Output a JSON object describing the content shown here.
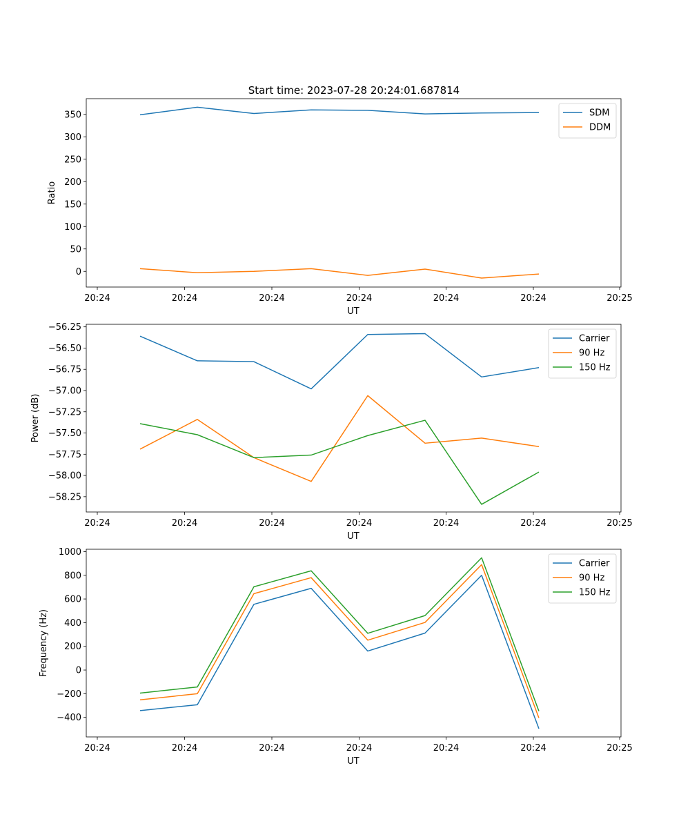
{
  "figure": {
    "title": "Start time: 2023-07-28 20:24:01.687814"
  },
  "colors": {
    "blue": "#1f77b4",
    "orange": "#ff7f0e",
    "green": "#2ca02c"
  },
  "chart_data": [
    {
      "type": "line",
      "ylabel": "Ratio",
      "xlabel": "UT",
      "x_tick_labels": [
        "20:24",
        "20:24",
        "20:24",
        "20:24",
        "20:24",
        "20:24",
        "20:25"
      ],
      "ylim": [
        -35,
        385
      ],
      "yticks": [
        0,
        50,
        100,
        150,
        200,
        250,
        300,
        350
      ],
      "ytick_labels": [
        "0",
        "50",
        "100",
        "150",
        "200",
        "250",
        "300",
        "350"
      ],
      "legend": "top-right",
      "series": [
        {
          "name": "SDM",
          "color": "#1f77b4",
          "values": [
            349,
            366,
            352,
            360,
            359,
            351,
            353,
            354
          ]
        },
        {
          "name": "DDM",
          "color": "#ff7f0e",
          "values": [
            6,
            -3,
            0,
            6,
            -9,
            5,
            -15,
            -6
          ]
        }
      ]
    },
    {
      "type": "line",
      "ylabel": "Power (dB)",
      "xlabel": "UT",
      "x_tick_labels": [
        "20:24",
        "20:24",
        "20:24",
        "20:24",
        "20:24",
        "20:24",
        "20:25"
      ],
      "ylim": [
        -58.43,
        -56.22
      ],
      "yticks": [
        -58.25,
        -58.0,
        -57.75,
        -57.5,
        -57.25,
        -57.0,
        -56.75,
        -56.5,
        -56.25
      ],
      "ytick_labels": [
        "−58.25",
        "−58.00",
        "−57.75",
        "−57.50",
        "−57.25",
        "−57.00",
        "−56.75",
        "−56.50",
        "−56.25"
      ],
      "legend": "top-right",
      "series": [
        {
          "name": "Carrier",
          "color": "#1f77b4",
          "values": [
            -56.36,
            -56.65,
            -56.66,
            -56.98,
            -56.34,
            -56.33,
            -56.84,
            -56.73
          ]
        },
        {
          "name": "90 Hz",
          "color": "#ff7f0e",
          "values": [
            -57.69,
            -57.34,
            -57.79,
            -58.07,
            -57.06,
            -57.62,
            -57.56,
            -57.66
          ]
        },
        {
          "name": "150 Hz",
          "color": "#2ca02c",
          "values": [
            -57.39,
            -57.52,
            -57.79,
            -57.76,
            -57.53,
            -57.35,
            -58.34,
            -57.96
          ]
        }
      ]
    },
    {
      "type": "line",
      "ylabel": "Frequency (Hz)",
      "xlabel": "UT",
      "x_tick_labels": [
        "20:24",
        "20:24",
        "20:24",
        "20:24",
        "20:24",
        "20:24",
        "20:25"
      ],
      "ylim": [
        -565,
        1020
      ],
      "yticks": [
        -400,
        -200,
        0,
        200,
        400,
        600,
        800,
        1000
      ],
      "ytick_labels": [
        "−400",
        "−200",
        "0",
        "200",
        "400",
        "600",
        "800",
        "1000"
      ],
      "legend": "top-right",
      "series": [
        {
          "name": "Carrier",
          "color": "#1f77b4",
          "values": [
            -343,
            -293,
            555,
            690,
            160,
            312,
            800,
            -495
          ]
        },
        {
          "name": "90 Hz",
          "color": "#ff7f0e",
          "values": [
            -252,
            -200,
            645,
            780,
            252,
            402,
            890,
            -405
          ]
        },
        {
          "name": "150 Hz",
          "color": "#2ca02c",
          "values": [
            -195,
            -143,
            703,
            838,
            310,
            460,
            948,
            -347
          ]
        }
      ]
    }
  ]
}
